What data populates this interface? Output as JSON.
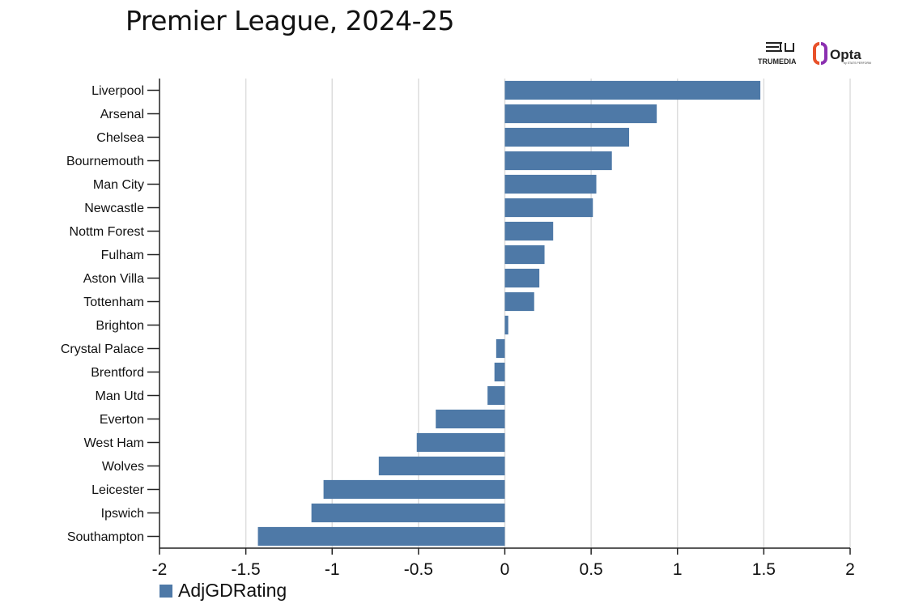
{
  "title": "Premier League, 2024-25",
  "logos": {
    "trumedia": "TRUMEDIA",
    "opta": "Opta",
    "opta_sub": "by STATS PERFORM"
  },
  "legend": {
    "label": "AdjGDRating",
    "color": "#4e79a7"
  },
  "chart_data": {
    "type": "bar",
    "orientation": "horizontal",
    "title": "Premier League, 2024-25",
    "xlabel": "",
    "ylabel": "",
    "xlim": [
      -2,
      2
    ],
    "xticks": [
      "-2",
      "-1.5",
      "-1",
      "-0.5",
      "0",
      "0.5",
      "1",
      "1.5",
      "2"
    ],
    "grid": true,
    "legend_position": "bottom-left",
    "categories": [
      "Liverpool",
      "Arsenal",
      "Chelsea",
      "Bournemouth",
      "Man City",
      "Newcastle",
      "Nottm Forest",
      "Fulham",
      "Aston Villa",
      "Tottenham",
      "Brighton",
      "Crystal Palace",
      "Brentford",
      "Man Utd",
      "Everton",
      "West Ham",
      "Wolves",
      "Leicester",
      "Ipswich",
      "Southampton"
    ],
    "series": [
      {
        "name": "AdjGDRating",
        "color": "#4e79a7",
        "values": [
          1.48,
          0.88,
          0.72,
          0.62,
          0.53,
          0.51,
          0.28,
          0.23,
          0.2,
          0.17,
          0.02,
          -0.05,
          -0.06,
          -0.1,
          -0.4,
          -0.51,
          -0.73,
          -1.05,
          -1.12,
          -1.43
        ]
      }
    ]
  }
}
